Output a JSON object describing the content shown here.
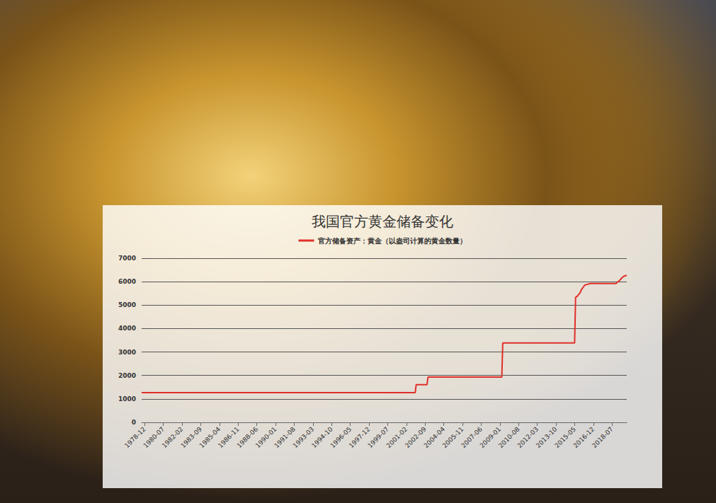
{
  "chart_data": {
    "type": "line",
    "title": "我国官方黄金储备变化",
    "x": [
      "1978-09",
      "2001-11",
      "2001-12",
      "2002-11",
      "2002-12",
      "2009-03",
      "2009-04",
      "2015-05",
      "2015-06",
      "2015-08",
      "2015-09",
      "2015-10",
      "2015-11",
      "2015-12",
      "2016-01",
      "2016-02",
      "2016-03",
      "2016-04",
      "2016-05",
      "2016-06",
      "2016-07",
      "2016-08",
      "2016-09",
      "2018-11",
      "2018-12",
      "2019-01",
      "2019-02",
      "2019-03",
      "2019-04",
      "2019-05",
      "2019-06",
      "2019-07",
      "2019-08",
      "2019-09",
      "2019-10"
    ],
    "series": [
      {
        "name": "官方储备资产：黄金（以盎司计算的黄金数量）",
        "color": "#e0302a",
        "values": [
          1267,
          1267,
          1608,
          1608,
          1929,
          1929,
          3389,
          3389,
          5331,
          5390,
          5450,
          5495,
          5566,
          5666,
          5719,
          5779,
          5839,
          5864,
          5878,
          5888,
          5899,
          5915,
          5924,
          5924,
          5956,
          5994,
          6026,
          6062,
          6110,
          6161,
          6194,
          6231,
          6245,
          6264,
          6264
        ]
      }
    ],
    "xlim": [
      "1978-09",
      "2019-10"
    ],
    "xticks": [
      "1978-12",
      "1980-07",
      "1982-02",
      "1983-09",
      "1985-04",
      "1986-11",
      "1988-06",
      "1990-01",
      "1991-08",
      "1993-03",
      "1994-10",
      "1996-05",
      "1997-12",
      "1999-07",
      "2001-02",
      "2002-09",
      "2004-04",
      "2005-11",
      "2007-06",
      "2009-01",
      "2010-08",
      "2012-03",
      "2013-10",
      "2015-05",
      "2016-12",
      "2018-07"
    ],
    "ylim": [
      0,
      7000
    ],
    "yticks": [
      0,
      1000,
      2000,
      3000,
      4000,
      5000,
      6000,
      7000
    ],
    "grid": true,
    "legend": "top"
  }
}
